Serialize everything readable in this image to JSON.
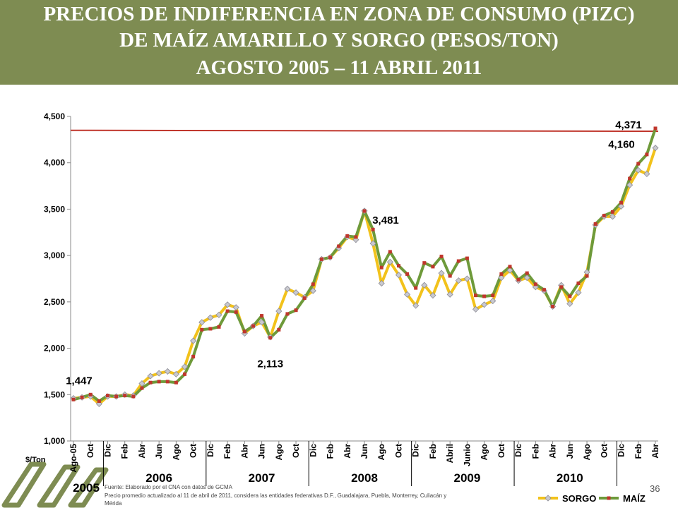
{
  "slide": {
    "title_lines": [
      "PRECIOS DE INDIFERENCIA EN ZONA DE CONSUMO (PIZC)",
      "DE MAÍZ AMARILLO Y SORGO (PESOS/TON)",
      "AGOSTO 2005 – 11 ABRIL 2011"
    ],
    "page_number": "36",
    "source_note": "Fuente: Elaborado por el CNA con datos de GCMA",
    "price_note_lines": [
      "Precio promedio actualizado al 11 de abril de 2011, considera las entidades federativas D.F., Guadalajara, Puebla, Monterrey, Culiacán y",
      "Mérida"
    ]
  },
  "chart_data": {
    "type": "line",
    "ylabel": "$/Ton",
    "ylim": [
      1000,
      4500
    ],
    "y_ticks": [
      "1,000",
      "1,500",
      "2,000",
      "2,500",
      "3,000",
      "3,500",
      "4,000",
      "4,500"
    ],
    "y_tick_values": [
      1000,
      1500,
      2000,
      2500,
      3000,
      3500,
      4000,
      4500
    ],
    "x_tick_labels": [
      "Ago-05",
      "Oct",
      "Dic",
      "Feb",
      "Abr",
      "Jun",
      "Ago",
      "Oct",
      "Dic",
      "Feb",
      "Abr",
      "Jun",
      "Ago",
      "Oct",
      "Dic",
      "Feb",
      "Abr",
      "Jun",
      "Ago",
      "Oct",
      "Dic",
      "Feb",
      "Abril",
      "Junio",
      "Ago",
      "Oct",
      "Dic",
      "Feb",
      "Abr",
      "Jun",
      "Ago",
      "Oct",
      "Dic",
      "Feb",
      "Abr"
    ],
    "year_labels": [
      {
        "label": "2005",
        "index": 0
      },
      {
        "label": "2006",
        "index": 8
      },
      {
        "label": "2007",
        "index": 20
      },
      {
        "label": "2008",
        "index": 32
      },
      {
        "label": "2009",
        "index": 44
      },
      {
        "label": "2010",
        "index": 56
      }
    ],
    "year_separators": [
      4,
      16,
      28,
      40,
      52,
      64
    ],
    "reference_line": {
      "value": 4350,
      "value_end": 4340,
      "color": "#c0362c"
    },
    "series": [
      {
        "name": "SORGO",
        "color": "#f2c21b",
        "marker_color": "#c9c9cf",
        "values": [
          1460,
          1470,
          1480,
          1400,
          1480,
          1480,
          1500,
          1490,
          1620,
          1700,
          1730,
          1750,
          1720,
          1800,
          2080,
          2280,
          2330,
          2360,
          2470,
          2440,
          2160,
          2240,
          2280,
          2120,
          2400,
          2640,
          2600,
          2550,
          2620,
          2960,
          2980,
          3080,
          3200,
          3170,
          3481,
          3130,
          2700,
          2930,
          2790,
          2580,
          2460,
          2680,
          2570,
          2810,
          2580,
          2730,
          2750,
          2420,
          2470,
          2510,
          2760,
          2840,
          2730,
          2760,
          2660,
          2620,
          2450,
          2680,
          2480,
          2600,
          2820,
          3330,
          3420,
          3420,
          3530,
          3760,
          3920,
          3880,
          4160
        ],
        "visible_labels": [
          {
            "index": 34,
            "text": "3,481"
          },
          {
            "index": 68,
            "text": "4,160"
          }
        ]
      },
      {
        "name": "MAÍZ",
        "color": "#6e9a3a",
        "marker_color": "#c0362c",
        "values": [
          1447,
          1470,
          1500,
          1430,
          1490,
          1480,
          1490,
          1480,
          1570,
          1630,
          1640,
          1640,
          1630,
          1720,
          1910,
          2200,
          2210,
          2230,
          2400,
          2390,
          2180,
          2240,
          2350,
          2113,
          2200,
          2370,
          2410,
          2540,
          2690,
          2960,
          2980,
          3100,
          3210,
          3200,
          3480,
          3280,
          2870,
          3040,
          2890,
          2800,
          2650,
          2920,
          2880,
          2990,
          2780,
          2940,
          2970,
          2570,
          2560,
          2570,
          2800,
          2880,
          2740,
          2810,
          2690,
          2630,
          2450,
          2660,
          2560,
          2700,
          2780,
          3340,
          3430,
          3470,
          3570,
          3830,
          3990,
          4090,
          4371
        ],
        "visible_labels": [
          {
            "index": 0,
            "text": "1,447"
          },
          {
            "index": 23,
            "text": "2,113"
          },
          {
            "index": 68,
            "text": "4,371"
          }
        ]
      }
    ],
    "legend": {
      "position": "bottom-right",
      "entries": [
        "SORGO",
        "MAÍZ"
      ]
    }
  }
}
